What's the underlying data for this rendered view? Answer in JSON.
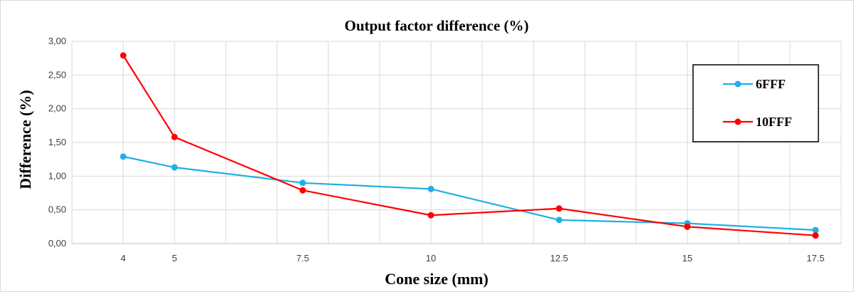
{
  "chart_data": {
    "type": "line",
    "title": "Output factor difference (%)",
    "xlabel": "Cone size (mm)",
    "ylabel": "Difference (%)",
    "x_tick_labels": [
      "4",
      "5",
      "7.5",
      "10",
      "12.5",
      "15",
      "17.5"
    ],
    "x": [
      4,
      5,
      7.5,
      10,
      12.5,
      15,
      17.5
    ],
    "xlim": [
      3,
      18
    ],
    "ylim": [
      0,
      3
    ],
    "y_tick_labels": [
      "0,00",
      "0,50",
      "1,00",
      "1,50",
      "2,00",
      "2,50",
      "3,00"
    ],
    "y_ticks": [
      0,
      0.5,
      1,
      1.5,
      2,
      2.5,
      3
    ],
    "grid": true,
    "legend_position": "right",
    "series": [
      {
        "name": "6FFF",
        "color": "#1fb0e6",
        "values": [
          1.29,
          1.13,
          0.9,
          0.81,
          0.35,
          0.3,
          0.2
        ]
      },
      {
        "name": "10FFF",
        "color": "#ff0000",
        "values": [
          2.79,
          1.58,
          0.79,
          0.42,
          0.52,
          0.25,
          0.12
        ]
      }
    ]
  }
}
